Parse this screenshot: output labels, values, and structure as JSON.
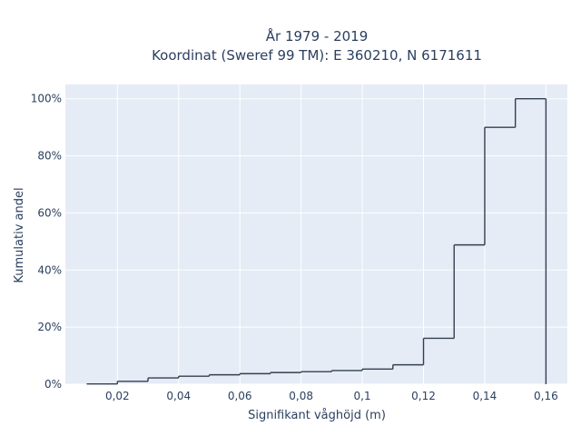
{
  "chart_data": {
    "type": "line",
    "title_line1": "År 1979 - 2019",
    "title_line2": "Koordinat (Sweref 99 TM): E 360210, N 6171611",
    "xlabel": "Signifikant våghöjd (m)",
    "ylabel": "Kumulativ andel",
    "xlim": [
      0.003,
      0.167
    ],
    "ylim": [
      0,
      1.05
    ],
    "x_ticks": [
      {
        "value": 0.02,
        "label": "0,02"
      },
      {
        "value": 0.04,
        "label": "0,04"
      },
      {
        "value": 0.06,
        "label": "0,06"
      },
      {
        "value": 0.08,
        "label": "0,08"
      },
      {
        "value": 0.1,
        "label": "0,1"
      },
      {
        "value": 0.12,
        "label": "0,12"
      },
      {
        "value": 0.14,
        "label": "0,14"
      },
      {
        "value": 0.16,
        "label": "0,16"
      }
    ],
    "y_ticks": [
      {
        "value": 0,
        "label": "0%"
      },
      {
        "value": 0.2,
        "label": "20%"
      },
      {
        "value": 0.4,
        "label": "40%"
      },
      {
        "value": 0.6,
        "label": "60%"
      },
      {
        "value": 0.8,
        "label": "80%"
      },
      {
        "value": 1.0,
        "label": "100%"
      }
    ],
    "series": [
      {
        "shape": "step-hist",
        "color": "#333f50",
        "bins": [
          {
            "x0": 0.01,
            "x1": 0.02,
            "y": 0.001
          },
          {
            "x0": 0.02,
            "x1": 0.03,
            "y": 0.01
          },
          {
            "x0": 0.03,
            "x1": 0.04,
            "y": 0.022
          },
          {
            "x0": 0.04,
            "x1": 0.05,
            "y": 0.028
          },
          {
            "x0": 0.05,
            "x1": 0.06,
            "y": 0.033
          },
          {
            "x0": 0.06,
            "x1": 0.07,
            "y": 0.037
          },
          {
            "x0": 0.07,
            "x1": 0.08,
            "y": 0.041
          },
          {
            "x0": 0.08,
            "x1": 0.09,
            "y": 0.044
          },
          {
            "x0": 0.09,
            "x1": 0.1,
            "y": 0.048
          },
          {
            "x0": 0.1,
            "x1": 0.11,
            "y": 0.053
          },
          {
            "x0": 0.11,
            "x1": 0.12,
            "y": 0.068
          },
          {
            "x0": 0.12,
            "x1": 0.13,
            "y": 0.161
          },
          {
            "x0": 0.13,
            "x1": 0.14,
            "y": 0.488
          },
          {
            "x0": 0.14,
            "x1": 0.15,
            "y": 0.9
          },
          {
            "x0": 0.15,
            "x1": 0.16,
            "y": 1.0
          }
        ]
      }
    ],
    "colors": {
      "plot_background": "#e5ecf6",
      "grid": "#ffffff",
      "text": "#2a3f5f"
    },
    "grid": true
  }
}
